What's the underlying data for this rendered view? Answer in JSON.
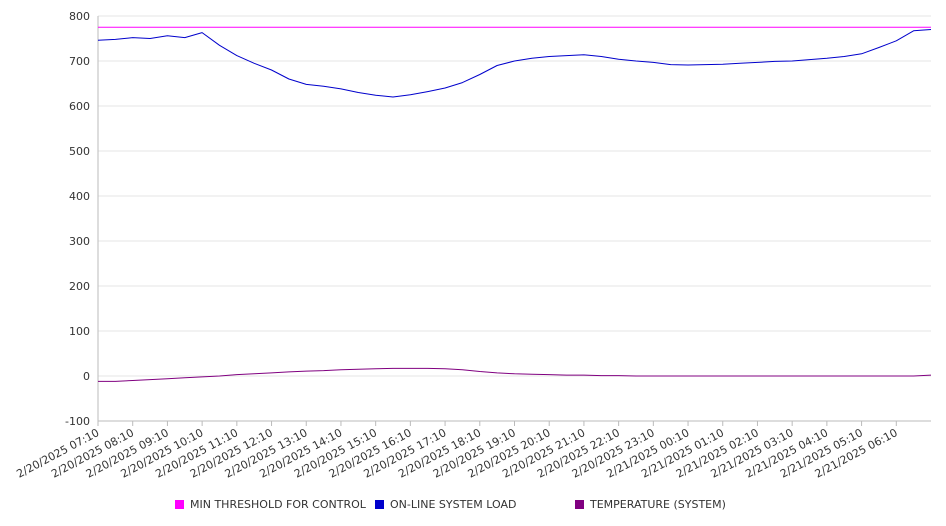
{
  "chart_data": {
    "type": "line",
    "ylim": [
      -100,
      800
    ],
    "yticks": [
      800,
      700,
      600,
      500,
      400,
      300,
      200,
      100,
      0,
      -100
    ],
    "xticks": [
      "2/20/2025 07:10",
      "2/20/2025 08:10",
      "2/20/2025 09:10",
      "2/20/2025 10:10",
      "2/20/2025 11:10",
      "2/20/2025 12:10",
      "2/20/2025 13:10",
      "2/20/2025 14:10",
      "2/20/2025 15:10",
      "2/20/2025 16:10",
      "2/20/2025 17:10",
      "2/20/2025 18:10",
      "2/20/2025 19:10",
      "2/20/2025 20:10",
      "2/20/2025 21:10",
      "2/20/2025 22:10",
      "2/20/2025 23:10",
      "2/21/2025 00:10",
      "2/21/2025 01:10",
      "2/21/2025 02:10",
      "2/21/2025 03:10",
      "2/21/2025 04:10",
      "2/21/2025 05:10",
      "2/21/2025 06:10"
    ],
    "grid": true,
    "legend_position": "bottom",
    "series": [
      {
        "name": "MIN THRESHOLD FOR CONTROL",
        "color": "#ff00ff",
        "x": [
          "2/20/2025 07:10",
          "2/21/2025 07:10"
        ],
        "y": [
          775,
          775
        ]
      },
      {
        "name": "ON-LINE SYSTEM LOAD",
        "color": "#0000cc",
        "x": [
          "2/20/2025 07:10",
          "2/20/2025 07:40",
          "2/20/2025 08:10",
          "2/20/2025 08:40",
          "2/20/2025 09:10",
          "2/20/2025 09:40",
          "2/20/2025 10:10",
          "2/20/2025 10:40",
          "2/20/2025 11:10",
          "2/20/2025 11:40",
          "2/20/2025 12:10",
          "2/20/2025 12:40",
          "2/20/2025 13:10",
          "2/20/2025 13:40",
          "2/20/2025 14:10",
          "2/20/2025 14:40",
          "2/20/2025 15:10",
          "2/20/2025 15:40",
          "2/20/2025 16:10",
          "2/20/2025 16:40",
          "2/20/2025 17:10",
          "2/20/2025 17:40",
          "2/20/2025 18:10",
          "2/20/2025 18:40",
          "2/20/2025 19:10",
          "2/20/2025 19:40",
          "2/20/2025 20:10",
          "2/20/2025 20:40",
          "2/20/2025 21:10",
          "2/20/2025 21:40",
          "2/20/2025 22:10",
          "2/20/2025 22:40",
          "2/20/2025 23:10",
          "2/20/2025 23:40",
          "2/21/2025 00:10",
          "2/21/2025 00:40",
          "2/21/2025 01:10",
          "2/21/2025 01:40",
          "2/21/2025 02:10",
          "2/21/2025 02:40",
          "2/21/2025 03:10",
          "2/21/2025 03:40",
          "2/21/2025 04:10",
          "2/21/2025 04:40",
          "2/21/2025 05:10",
          "2/21/2025 05:40",
          "2/21/2025 06:10",
          "2/21/2025 06:40",
          "2/21/2025 07:10"
        ],
        "y": [
          746,
          748,
          752,
          750,
          756,
          752,
          763,
          735,
          712,
          695,
          680,
          660,
          648,
          644,
          638,
          630,
          624,
          620,
          625,
          632,
          640,
          652,
          670,
          690,
          700,
          706,
          710,
          712,
          714,
          710,
          704,
          700,
          697,
          692,
          691,
          692,
          693,
          695,
          697,
          699,
          700,
          703,
          706,
          710,
          716,
          730,
          745,
          767,
          770
        ]
      },
      {
        "name": "TEMPERATURE (SYSTEM)",
        "color": "#800080",
        "x": [
          "2/20/2025 07:10",
          "2/20/2025 07:40",
          "2/20/2025 08:10",
          "2/20/2025 08:40",
          "2/20/2025 09:10",
          "2/20/2025 09:40",
          "2/20/2025 10:10",
          "2/20/2025 10:40",
          "2/20/2025 11:10",
          "2/20/2025 11:40",
          "2/20/2025 12:10",
          "2/20/2025 12:40",
          "2/20/2025 13:10",
          "2/20/2025 13:40",
          "2/20/2025 14:10",
          "2/20/2025 14:40",
          "2/20/2025 15:10",
          "2/20/2025 15:40",
          "2/20/2025 16:10",
          "2/20/2025 16:40",
          "2/20/2025 17:10",
          "2/20/2025 17:40",
          "2/20/2025 18:10",
          "2/20/2025 18:40",
          "2/20/2025 19:10",
          "2/20/2025 19:40",
          "2/20/2025 20:10",
          "2/20/2025 20:40",
          "2/20/2025 21:10",
          "2/20/2025 21:40",
          "2/20/2025 22:10",
          "2/20/2025 22:40",
          "2/20/2025 23:10",
          "2/20/2025 23:40",
          "2/21/2025 00:10",
          "2/21/2025 00:40",
          "2/21/2025 01:10",
          "2/21/2025 01:40",
          "2/21/2025 02:10",
          "2/21/2025 02:40",
          "2/21/2025 03:10",
          "2/21/2025 03:40",
          "2/21/2025 04:10",
          "2/21/2025 04:40",
          "2/21/2025 05:10",
          "2/21/2025 05:40",
          "2/21/2025 06:10",
          "2/21/2025 06:40",
          "2/21/2025 07:10"
        ],
        "y": [
          -12,
          -12,
          -10,
          -8,
          -6,
          -4,
          -2,
          0,
          3,
          5,
          7,
          9,
          11,
          12,
          14,
          15,
          16,
          17,
          17,
          17,
          16,
          14,
          10,
          7,
          5,
          4,
          3,
          2,
          2,
          1,
          1,
          0,
          0,
          0,
          0,
          0,
          0,
          0,
          0,
          0,
          0,
          0,
          0,
          0,
          0,
          0,
          0,
          0,
          2
        ]
      }
    ]
  }
}
